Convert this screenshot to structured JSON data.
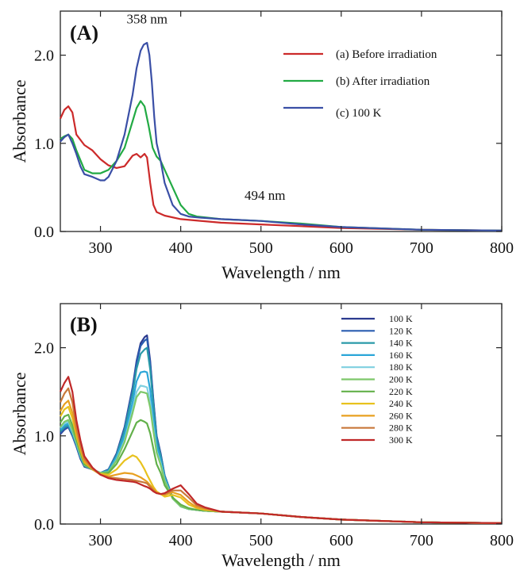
{
  "figure": {
    "panel_a": {
      "label": "(A)",
      "annotations": [
        {
          "text": "358 nm",
          "x": 358,
          "y": 2.36
        },
        {
          "text": "494 nm",
          "x": 505,
          "y": 0.36
        }
      ]
    },
    "panel_b": {
      "label": "(B)"
    }
  },
  "chart_data": [
    {
      "type": "line",
      "panel": "(A)",
      "xlabel": "Wavelength / nm",
      "ylabel": "Absorbance",
      "xlim": [
        250,
        800
      ],
      "ylim": [
        0,
        2.5
      ],
      "xticks": [
        300,
        400,
        500,
        600,
        700,
        800
      ],
      "yticks": [
        0.0,
        1.0,
        2.0
      ],
      "xtick_labels": [
        "300",
        "400",
        "500",
        "600",
        "700",
        "800"
      ],
      "ytick_labels": [
        "0.0",
        "1.0",
        "2.0"
      ],
      "legend_position": "top-right",
      "series": [
        {
          "name": "(a) Before irradiation",
          "color": "#cc2a2a",
          "x": [
            250,
            255,
            260,
            265,
            270,
            280,
            290,
            300,
            310,
            320,
            330,
            340,
            345,
            350,
            355,
            358,
            362,
            366,
            370,
            380,
            400,
            450,
            500,
            550,
            600,
            700,
            800
          ],
          "y": [
            1.28,
            1.38,
            1.42,
            1.35,
            1.1,
            0.98,
            0.92,
            0.82,
            0.75,
            0.72,
            0.74,
            0.86,
            0.88,
            0.84,
            0.88,
            0.84,
            0.55,
            0.3,
            0.22,
            0.18,
            0.14,
            0.1,
            0.08,
            0.06,
            0.04,
            0.02,
            0.01
          ]
        },
        {
          "name": "(b) After irradiation",
          "color": "#22aa44",
          "x": [
            250,
            255,
            260,
            265,
            270,
            280,
            290,
            300,
            310,
            320,
            330,
            340,
            345,
            350,
            355,
            360,
            365,
            370,
            375,
            380,
            390,
            400,
            410,
            420,
            450,
            500,
            550,
            600,
            700,
            800
          ],
          "y": [
            1.05,
            1.08,
            1.1,
            1.05,
            0.92,
            0.7,
            0.66,
            0.66,
            0.7,
            0.8,
            0.95,
            1.25,
            1.4,
            1.48,
            1.42,
            1.2,
            0.95,
            0.85,
            0.8,
            0.7,
            0.5,
            0.3,
            0.2,
            0.17,
            0.14,
            0.12,
            0.09,
            0.05,
            0.02,
            0.01
          ]
        },
        {
          "name": "(c) 100 K",
          "color": "#3a4fa6",
          "x": [
            250,
            255,
            260,
            265,
            270,
            275,
            280,
            290,
            300,
            305,
            310,
            320,
            330,
            340,
            345,
            350,
            354,
            358,
            361,
            364,
            367,
            370,
            375,
            380,
            390,
            400,
            410,
            420,
            450,
            500,
            550,
            600,
            700,
            800
          ],
          "y": [
            1.02,
            1.07,
            1.1,
            1.0,
            0.88,
            0.74,
            0.65,
            0.62,
            0.58,
            0.58,
            0.62,
            0.8,
            1.1,
            1.55,
            1.85,
            2.05,
            2.12,
            2.14,
            2.0,
            1.7,
            1.3,
            1.0,
            0.8,
            0.55,
            0.3,
            0.2,
            0.17,
            0.16,
            0.14,
            0.12,
            0.08,
            0.05,
            0.02,
            0.01
          ]
        }
      ]
    },
    {
      "type": "line",
      "panel": "(B)",
      "xlabel": "Wavelength / nm",
      "ylabel": "Absorbance",
      "xlim": [
        250,
        800
      ],
      "ylim": [
        0,
        2.5
      ],
      "xticks": [
        300,
        400,
        500,
        600,
        700,
        800
      ],
      "yticks": [
        0.0,
        1.0,
        2.0
      ],
      "xtick_labels": [
        "300",
        "400",
        "500",
        "600",
        "700",
        "800"
      ],
      "ytick_labels": [
        "0.0",
        "1.0",
        "2.0"
      ],
      "legend_position": "top-right",
      "x": [
        250,
        255,
        260,
        265,
        270,
        275,
        280,
        290,
        300,
        310,
        320,
        330,
        340,
        345,
        350,
        355,
        358,
        362,
        366,
        370,
        375,
        380,
        390,
        400,
        410,
        420,
        430,
        450,
        500,
        550,
        600,
        700,
        800
      ],
      "series": [
        {
          "name": "100 K",
          "color": "#2b3a8f",
          "y": [
            1.02,
            1.07,
            1.1,
            1.0,
            0.88,
            0.74,
            0.65,
            0.62,
            0.58,
            0.62,
            0.8,
            1.1,
            1.55,
            1.85,
            2.05,
            2.12,
            2.14,
            1.85,
            1.4,
            1.0,
            0.8,
            0.55,
            0.3,
            0.2,
            0.17,
            0.16,
            0.15,
            0.14,
            0.12,
            0.08,
            0.05,
            0.02,
            0.01
          ]
        },
        {
          "name": "120 K",
          "color": "#2a5db0",
          "y": [
            1.03,
            1.08,
            1.11,
            1.01,
            0.89,
            0.75,
            0.66,
            0.62,
            0.58,
            0.62,
            0.79,
            1.09,
            1.53,
            1.83,
            2.02,
            2.08,
            2.1,
            1.82,
            1.38,
            0.99,
            0.79,
            0.55,
            0.3,
            0.2,
            0.17,
            0.16,
            0.15,
            0.14,
            0.12,
            0.08,
            0.05,
            0.02,
            0.01
          ]
        },
        {
          "name": "140 K",
          "color": "#2a9aa8",
          "y": [
            1.05,
            1.1,
            1.12,
            1.02,
            0.9,
            0.76,
            0.66,
            0.62,
            0.58,
            0.61,
            0.78,
            1.06,
            1.48,
            1.76,
            1.93,
            1.98,
            2.0,
            1.75,
            1.33,
            0.96,
            0.77,
            0.54,
            0.3,
            0.2,
            0.17,
            0.16,
            0.15,
            0.14,
            0.12,
            0.08,
            0.05,
            0.02,
            0.01
          ]
        },
        {
          "name": "160 K",
          "color": "#2aa6d8",
          "y": [
            1.07,
            1.12,
            1.14,
            1.04,
            0.91,
            0.77,
            0.67,
            0.62,
            0.58,
            0.6,
            0.76,
            1.0,
            1.38,
            1.62,
            1.72,
            1.73,
            1.72,
            1.52,
            1.18,
            0.88,
            0.72,
            0.52,
            0.29,
            0.2,
            0.17,
            0.16,
            0.15,
            0.14,
            0.12,
            0.08,
            0.05,
            0.02,
            0.01
          ]
        },
        {
          "name": "180 K",
          "color": "#7fd0e0",
          "y": [
            1.09,
            1.14,
            1.16,
            1.05,
            0.92,
            0.78,
            0.67,
            0.62,
            0.58,
            0.59,
            0.73,
            0.95,
            1.3,
            1.5,
            1.57,
            1.56,
            1.55,
            1.38,
            1.09,
            0.83,
            0.69,
            0.5,
            0.29,
            0.2,
            0.17,
            0.16,
            0.15,
            0.14,
            0.12,
            0.08,
            0.05,
            0.02,
            0.01
          ]
        },
        {
          "name": "200 K",
          "color": "#7ec86a",
          "y": [
            1.1,
            1.16,
            1.18,
            1.07,
            0.93,
            0.79,
            0.67,
            0.62,
            0.58,
            0.59,
            0.72,
            0.93,
            1.26,
            1.44,
            1.5,
            1.49,
            1.48,
            1.32,
            1.05,
            0.81,
            0.67,
            0.49,
            0.29,
            0.2,
            0.17,
            0.16,
            0.15,
            0.14,
            0.12,
            0.08,
            0.05,
            0.02,
            0.01
          ]
        },
        {
          "name": "220 K",
          "color": "#62b04a",
          "y": [
            1.15,
            1.22,
            1.24,
            1.12,
            0.96,
            0.81,
            0.68,
            0.62,
            0.57,
            0.58,
            0.68,
            0.85,
            1.05,
            1.15,
            1.18,
            1.16,
            1.14,
            1.03,
            0.85,
            0.68,
            0.58,
            0.44,
            0.3,
            0.22,
            0.18,
            0.16,
            0.15,
            0.14,
            0.12,
            0.08,
            0.05,
            0.02,
            0.01
          ]
        },
        {
          "name": "240 K",
          "color": "#e8c21e",
          "y": [
            1.22,
            1.3,
            1.33,
            1.2,
            1.0,
            0.84,
            0.7,
            0.62,
            0.57,
            0.56,
            0.62,
            0.72,
            0.78,
            0.76,
            0.7,
            0.62,
            0.56,
            0.49,
            0.42,
            0.37,
            0.34,
            0.31,
            0.33,
            0.3,
            0.22,
            0.18,
            0.16,
            0.14,
            0.12,
            0.08,
            0.05,
            0.02,
            0.01
          ]
        },
        {
          "name": "260 K",
          "color": "#e8a020",
          "y": [
            1.28,
            1.36,
            1.4,
            1.26,
            1.03,
            0.86,
            0.71,
            0.62,
            0.56,
            0.54,
            0.56,
            0.58,
            0.57,
            0.55,
            0.53,
            0.5,
            0.48,
            0.44,
            0.4,
            0.36,
            0.34,
            0.33,
            0.36,
            0.33,
            0.25,
            0.19,
            0.17,
            0.14,
            0.12,
            0.08,
            0.05,
            0.02,
            0.01
          ]
        },
        {
          "name": "280 K",
          "color": "#c8783a",
          "y": [
            1.38,
            1.48,
            1.54,
            1.38,
            1.1,
            0.9,
            0.74,
            0.63,
            0.56,
            0.53,
            0.52,
            0.51,
            0.5,
            0.49,
            0.48,
            0.47,
            0.46,
            0.42,
            0.38,
            0.35,
            0.34,
            0.34,
            0.38,
            0.38,
            0.3,
            0.21,
            0.18,
            0.14,
            0.12,
            0.08,
            0.05,
            0.02,
            0.01
          ]
        },
        {
          "name": "300 K",
          "color": "#c02828",
          "y": [
            1.5,
            1.6,
            1.67,
            1.5,
            1.18,
            0.95,
            0.77,
            0.64,
            0.56,
            0.52,
            0.5,
            0.49,
            0.48,
            0.47,
            0.45,
            0.43,
            0.42,
            0.4,
            0.37,
            0.35,
            0.34,
            0.35,
            0.4,
            0.44,
            0.34,
            0.23,
            0.19,
            0.14,
            0.12,
            0.08,
            0.05,
            0.02,
            0.01
          ]
        }
      ]
    }
  ]
}
